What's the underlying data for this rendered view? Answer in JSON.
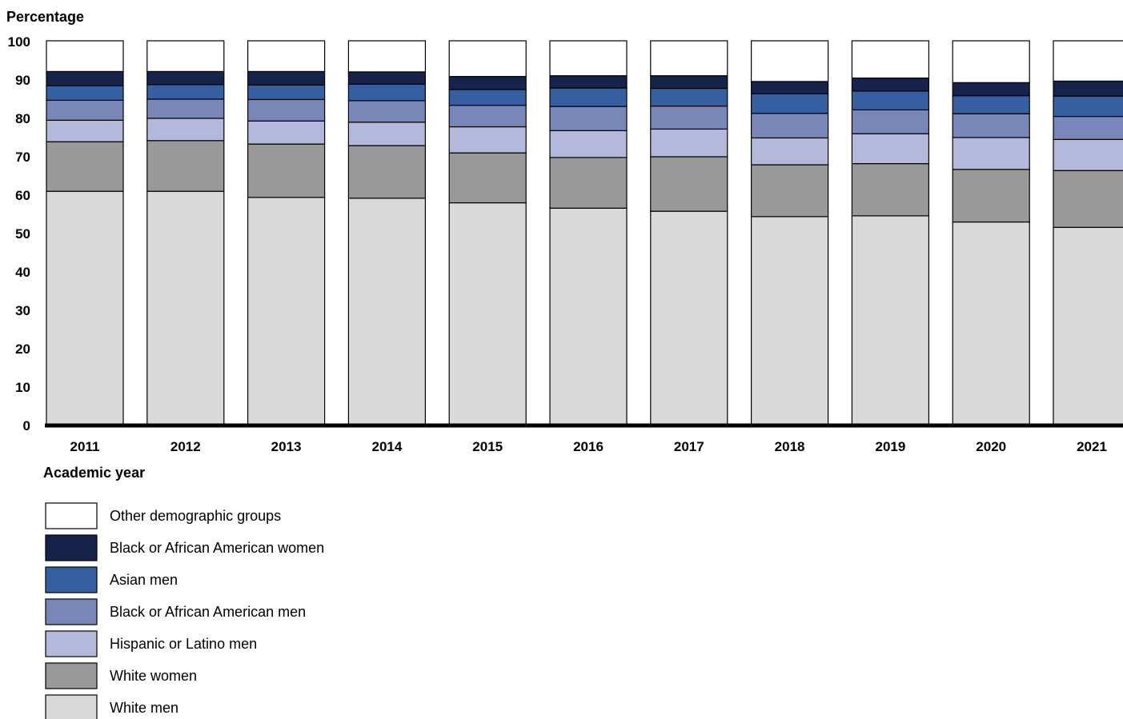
{
  "chart_data": {
    "type": "bar",
    "stacked": true,
    "ylabel": "Percentage",
    "xlabel": "Academic year",
    "ylim": [
      0,
      100
    ],
    "yticks": [
      0,
      10,
      20,
      30,
      40,
      50,
      60,
      70,
      80,
      90,
      100
    ],
    "categories": [
      "2011",
      "2012",
      "2013",
      "2014",
      "2015",
      "2016",
      "2017",
      "2018",
      "2019",
      "2020",
      "2021"
    ],
    "series": [
      {
        "name": "White men",
        "color": "#d9d9d9",
        "values": [
          60.8,
          60.8,
          59.2,
          59.0,
          57.8,
          56.4,
          55.6,
          54.2,
          54.4,
          52.8,
          51.4
        ]
      },
      {
        "name": "White women",
        "color": "#999999",
        "values": [
          12.9,
          13.2,
          13.9,
          13.7,
          13.0,
          13.2,
          14.2,
          13.5,
          13.6,
          13.7,
          14.8
        ]
      },
      {
        "name": "Hispanic or Latino men",
        "color": "#b4b8da",
        "values": [
          5.6,
          5.8,
          6.0,
          6.1,
          6.8,
          7.0,
          7.2,
          7.0,
          7.8,
          8.3,
          8.1
        ]
      },
      {
        "name": "Black or African American men",
        "color": "#7986b8",
        "values": [
          5.2,
          5.0,
          5.6,
          5.6,
          5.6,
          6.3,
          6.0,
          6.4,
          6.2,
          6.2,
          6.0
        ]
      },
      {
        "name": "Asian men",
        "color": "#355fa0",
        "values": [
          3.8,
          3.8,
          3.8,
          4.3,
          4.1,
          4.8,
          4.6,
          5.1,
          4.9,
          4.7,
          5.3
        ]
      },
      {
        "name": "Black or African American women",
        "color": "#16244b",
        "values": [
          3.7,
          3.4,
          3.5,
          3.2,
          3.4,
          3.2,
          3.3,
          3.2,
          3.4,
          3.4,
          3.9
        ]
      },
      {
        "name": "Other demographic groups",
        "color": "#ffffff",
        "values": [
          8.0,
          8.0,
          8.0,
          8.1,
          9.3,
          9.1,
          9.1,
          10.6,
          9.7,
          10.9,
          10.5
        ]
      }
    ],
    "legend_order": [
      "Other demographic groups",
      "Black or African American women",
      "Asian men",
      "Black or African American men",
      "Hispanic or Latino men",
      "White women",
      "White men"
    ],
    "legend_position": "bottom-left",
    "grid": false
  }
}
